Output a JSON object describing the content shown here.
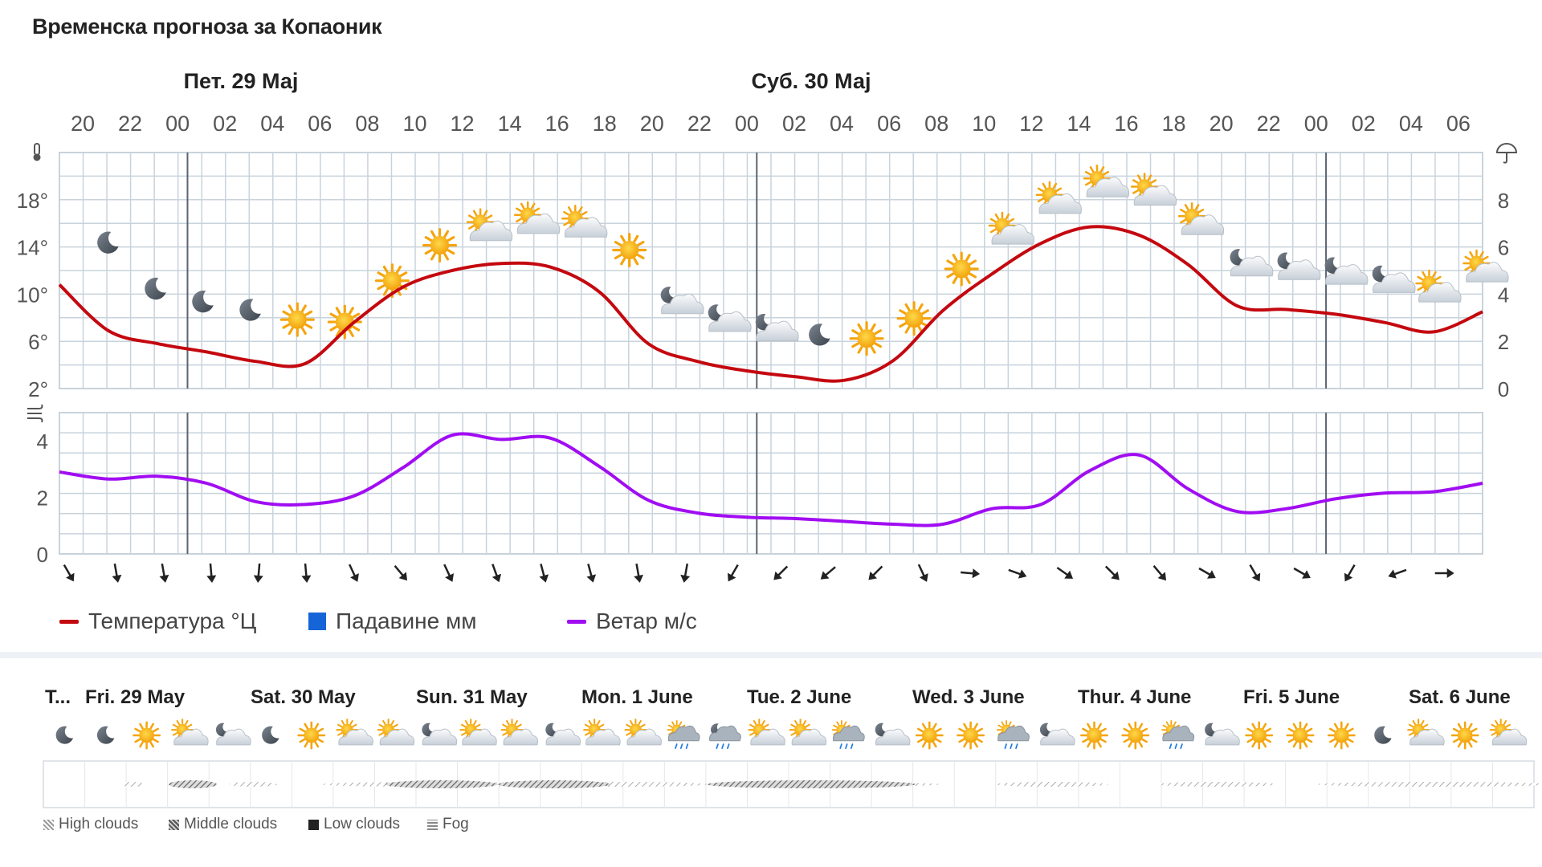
{
  "title": "Временска прогноза за Копаоник",
  "days": [
    {
      "label": "Пет. 29 Мај"
    },
    {
      "label": "Суб. 30 Мај"
    }
  ],
  "colors": {
    "temperature": "#c4080f",
    "precipitation": "#1565d8",
    "wind": "#a10df2",
    "grid": "#c8d3dc",
    "day_divider": "#5a6470"
  },
  "legend": {
    "temperature": "Температура °Ц",
    "precipitation": "Падавине мм",
    "wind": "Ветар м/с"
  },
  "chart_data": [
    {
      "type": "line",
      "title": "",
      "x": [
        "20",
        "22",
        "00",
        "02",
        "04",
        "06",
        "08",
        "10",
        "12",
        "14",
        "16",
        "18",
        "20",
        "22",
        "00",
        "02",
        "04",
        "06",
        "08",
        "10",
        "12",
        "14",
        "16",
        "18",
        "20",
        "22",
        "00",
        "02",
        "04",
        "06"
      ],
      "series": [
        {
          "name": "Температура °Ц",
          "values": [
            10.8,
            6.9,
            5.8,
            5.1,
            4.3,
            4.1,
            7.6,
            10.6,
            12.0,
            12.6,
            12.3,
            10.2,
            5.8,
            4.3,
            3.5,
            3.0,
            2.7,
            4.4,
            8.6,
            11.7,
            14.3,
            15.7,
            15.0,
            12.5,
            9.0,
            8.7,
            8.3,
            7.6,
            6.8,
            8.5
          ]
        },
        {
          "name": "Падавине мм",
          "values": [
            0,
            0,
            0,
            0,
            0,
            0,
            0,
            0,
            0,
            0,
            0,
            0,
            0,
            0,
            0,
            0,
            0,
            0,
            0,
            0,
            0,
            0,
            0,
            0,
            0,
            0,
            0,
            0,
            0,
            0
          ]
        }
      ],
      "ylim": [
        2,
        22
      ],
      "yticks": [
        "18°",
        "14°",
        "10°",
        "6°",
        "2°"
      ],
      "y2lim": [
        0,
        10
      ],
      "y2ticks": [
        "8",
        "6",
        "4",
        "2",
        "0"
      ],
      "icons": [
        "moon",
        "moon",
        "moon",
        "moon",
        "sun",
        "sun",
        "sun",
        "sun",
        "partly-cloudy",
        "partly-cloudy",
        "partly-cloudy",
        "sun",
        "night-cloudy",
        "night-cloudy",
        "night-cloudy",
        "moon",
        "sun",
        "sun",
        "sun",
        "partly-cloudy",
        "partly-cloudy",
        "partly-cloudy",
        "partly-cloudy",
        "partly-cloudy",
        "night-cloudy",
        "night-cloudy",
        "night-cloudy",
        "night-cloudy",
        "partly-cloudy",
        "partly-cloudy"
      ],
      "grid": true
    },
    {
      "type": "line",
      "title": "",
      "x": [
        "20",
        "22",
        "00",
        "02",
        "04",
        "06",
        "08",
        "10",
        "12",
        "14",
        "16",
        "18",
        "20",
        "22",
        "00",
        "02",
        "04",
        "06",
        "08",
        "10",
        "12",
        "14",
        "16",
        "18",
        "20",
        "22",
        "00",
        "02",
        "04",
        "06"
      ],
      "series": [
        {
          "name": "Ветар м/с",
          "values": [
            2.9,
            2.65,
            2.75,
            2.5,
            1.85,
            1.75,
            2.05,
            3.05,
            4.2,
            4.05,
            4.1,
            3.1,
            1.9,
            1.45,
            1.3,
            1.25,
            1.15,
            1.05,
            1.05,
            1.6,
            1.75,
            2.95,
            3.5,
            2.3,
            1.5,
            1.6,
            1.95,
            2.15,
            2.2,
            2.5
          ]
        }
      ],
      "ylim": [
        0,
        5
      ],
      "yticks": [
        "4",
        "2",
        "0"
      ],
      "wind_direction_deg": [
        330,
        350,
        350,
        355,
        5,
        355,
        335,
        320,
        335,
        340,
        345,
        345,
        350,
        10,
        30,
        45,
        50,
        45,
        335,
        275,
        290,
        305,
        315,
        320,
        300,
        330,
        300,
        30,
        70,
        270
      ],
      "grid": true
    }
  ],
  "bottom": {
    "days": [
      "T...",
      "Fri. 29 May",
      "Sat. 30 May",
      "Sun. 31 May",
      "Mon. 1 June",
      "Tue. 2 June",
      "Wed. 3 June",
      "Thur. 4 June",
      "Fri. 5 June",
      "Sat. 6 June"
    ],
    "icons": [
      "moon",
      "moon",
      "sun",
      "partly-cloudy",
      "night-cloudy",
      "moon",
      "sun",
      "partly-cloudy",
      "partly-cloudy",
      "night-cloudy",
      "partly-cloudy",
      "partly-cloudy",
      "night-cloudy",
      "partly-cloudy",
      "partly-cloudy",
      "rain",
      "night-rain",
      "partly-cloudy",
      "partly-cloudy",
      "rain",
      "night-cloudy",
      "sun",
      "sun",
      "rain",
      "night-cloudy",
      "sun",
      "sun",
      "rain",
      "night-cloudy",
      "sun",
      "sun",
      "sun",
      "moon",
      "partly-cloudy",
      "sun",
      "partly-cloudy"
    ],
    "cloud_legend": [
      "High clouds",
      "Middle clouds",
      "Low clouds",
      "Fog"
    ]
  }
}
